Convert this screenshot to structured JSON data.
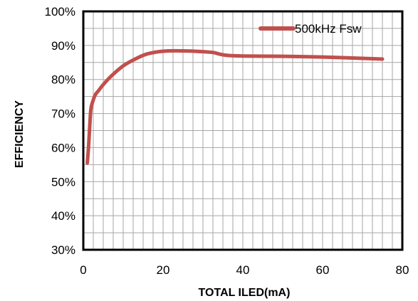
{
  "chart_data": {
    "type": "line",
    "title": "",
    "xlabel": "TOTAL ILED(mA)",
    "ylabel": "EFFICIENCY",
    "xlim": [
      0,
      80
    ],
    "ylim": [
      30,
      100
    ],
    "x_ticks": [
      0,
      20,
      40,
      60,
      80
    ],
    "y_ticks": [
      30,
      40,
      50,
      60,
      70,
      80,
      90,
      100
    ],
    "y_tick_suffix": "%",
    "grid": true,
    "legend_position": "top-right",
    "colors": {
      "series": "#c0504d",
      "grid": "#a6a6a6",
      "frame": "#000000"
    },
    "series": [
      {
        "name": "500kHz Fsw",
        "x": [
          1,
          1.3,
          1.5,
          1.8,
          2,
          2.5,
          3,
          4,
          5,
          7,
          10,
          13,
          16,
          20,
          25,
          32,
          34,
          36,
          40,
          50,
          60,
          70,
          75
        ],
        "y": [
          55.5,
          60,
          64,
          70,
          72,
          74,
          75.5,
          77,
          78.5,
          81,
          84,
          86,
          87.5,
          88.3,
          88.4,
          88,
          87.5,
          87.1,
          86.9,
          86.8,
          86.6,
          86.2,
          86
        ]
      }
    ]
  }
}
